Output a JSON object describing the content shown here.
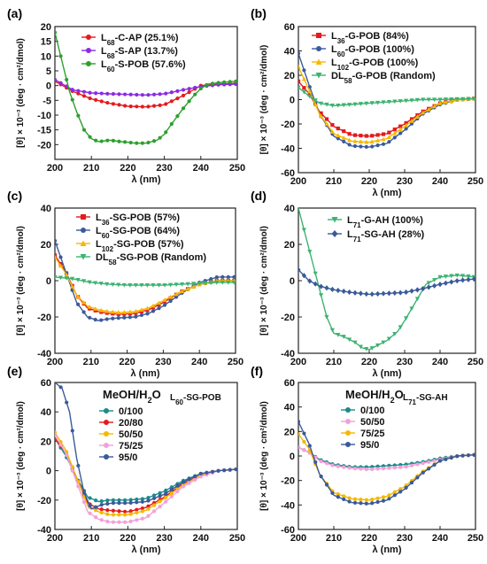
{
  "chart_data": [
    {
      "type": "line",
      "panel_label": "(a)",
      "xlabel": "λ (nm)",
      "ylabel": "[θ] × 10⁻³ (deg · cm²/dmol)",
      "xlim": [
        200,
        250
      ],
      "ylim": [
        -25,
        20
      ],
      "xticks": [
        200,
        210,
        220,
        230,
        240,
        250
      ],
      "yticks": [
        -20,
        -15,
        -10,
        -5,
        0,
        5,
        10,
        15,
        20
      ],
      "legend_placement": "top-right",
      "series": [
        {
          "name": "L68-C-AP (25.1%)",
          "color": "#e41a1c",
          "marker": "circle",
          "x": [
            200,
            205,
            210,
            215,
            220,
            225,
            230,
            235,
            240,
            245,
            250
          ],
          "y": [
            1.5,
            -2,
            -4.5,
            -6,
            -7,
            -7.2,
            -6.5,
            -3.5,
            0,
            0.5,
            0.8
          ]
        },
        {
          "name": "L68-S-AP (13.7%)",
          "color": "#8a2be2",
          "marker": "circle",
          "x": [
            200,
            205,
            210,
            215,
            220,
            225,
            230,
            235,
            240,
            245,
            250
          ],
          "y": [
            2,
            -1.5,
            -2.5,
            -2.8,
            -3,
            -3.2,
            -2.8,
            -1.5,
            -0.3,
            0.3,
            0.5
          ]
        },
        {
          "name": "L60-S-POB (57.6%)",
          "color": "#2ca02c",
          "marker": "circle",
          "x": [
            200,
            202,
            204,
            206,
            208,
            210,
            212,
            215,
            218,
            220,
            222,
            225,
            228,
            230,
            232,
            235,
            238,
            240,
            242,
            245,
            250
          ],
          "y": [
            18,
            8,
            -2,
            -9,
            -15,
            -18,
            -19,
            -18.5,
            -19,
            -19.2,
            -19.5,
            -19.5,
            -18.5,
            -16.5,
            -13,
            -8,
            -3.5,
            -1,
            0.5,
            1,
            1.5
          ]
        }
      ]
    },
    {
      "type": "line",
      "panel_label": "(b)",
      "xlabel": "λ (nm)",
      "ylabel": "[θ] × 10⁻³ (deg · cm²/dmol)",
      "xlim": [
        200,
        250
      ],
      "ylim": [
        -60,
        60
      ],
      "xticks": [
        200,
        210,
        220,
        230,
        240,
        250
      ],
      "yticks": [
        -60,
        -40,
        -20,
        0,
        20,
        40,
        60
      ],
      "legend_placement": "top-right",
      "series": [
        {
          "name": "L36-G-POB (84%)",
          "color": "#e41a1c",
          "marker": "square",
          "x": [
            200,
            203,
            206,
            210,
            215,
            220,
            225,
            230,
            235,
            240,
            245,
            250
          ],
          "y": [
            15,
            5,
            -10,
            -22,
            -29,
            -30,
            -28,
            -20,
            -10,
            -3,
            0,
            1
          ]
        },
        {
          "name": "L60-G-POB (100%)",
          "color": "#3a5a9a",
          "marker": "circle",
          "x": [
            200,
            203,
            206,
            210,
            215,
            220,
            225,
            230,
            235,
            240,
            245,
            250
          ],
          "y": [
            38,
            12,
            -12,
            -30,
            -38,
            -39,
            -36,
            -25,
            -12,
            -4,
            0,
            1
          ]
        },
        {
          "name": "L102-G-POB (100%)",
          "color": "#f5b800",
          "marker": "triangle-up",
          "x": [
            200,
            203,
            206,
            210,
            215,
            220,
            225,
            230,
            235,
            240,
            245,
            250
          ],
          "y": [
            27,
            8,
            -12,
            -28,
            -34,
            -35,
            -32,
            -22,
            -11,
            -3,
            0,
            1
          ]
        },
        {
          "name": "DL58-G-POB (Random)",
          "color": "#3cb371",
          "marker": "triangle-down",
          "x": [
            200,
            203,
            206,
            210,
            215,
            220,
            225,
            230,
            235,
            240,
            245,
            250
          ],
          "y": [
            10,
            3,
            -3,
            -5,
            -4,
            -3,
            -2,
            -1,
            0,
            0,
            0.5,
            0.5
          ]
        }
      ]
    },
    {
      "type": "line",
      "panel_label": "(c)",
      "xlabel": "λ (nm)",
      "ylabel": "[θ] × 10⁻³ (deg · cm²/dmol)",
      "xlim": [
        200,
        250
      ],
      "ylim": [
        -40,
        40
      ],
      "xticks": [
        200,
        210,
        220,
        230,
        240,
        250
      ],
      "yticks": [
        -40,
        -20,
        0,
        20,
        40
      ],
      "legend_placement": "top-right",
      "series": [
        {
          "name": "L36-SG-POB (57%)",
          "color": "#e41a1c",
          "marker": "square",
          "x": [
            200,
            203,
            206,
            209,
            212,
            215,
            218,
            222,
            226,
            230,
            235,
            240,
            245,
            250
          ],
          "y": [
            14,
            5,
            -8,
            -15,
            -17,
            -18,
            -18.5,
            -18,
            -16,
            -12,
            -6,
            -2,
            0,
            0
          ]
        },
        {
          "name": "L60-SG-POB (64%)",
          "color": "#3a5a9a",
          "marker": "circle",
          "x": [
            200,
            203,
            206,
            209,
            212,
            215,
            218,
            222,
            226,
            230,
            235,
            240,
            245,
            250
          ],
          "y": [
            22,
            5,
            -12,
            -20,
            -22,
            -21,
            -20.5,
            -20,
            -18,
            -14,
            -7,
            -1,
            2,
            2
          ]
        },
        {
          "name": "L102-SG-POB (57%)",
          "color": "#f5b800",
          "marker": "triangle-up",
          "x": [
            200,
            203,
            206,
            209,
            212,
            215,
            218,
            222,
            226,
            230,
            235,
            240,
            245,
            250
          ],
          "y": [
            13,
            4,
            -8,
            -14,
            -16,
            -17,
            -17.5,
            -17,
            -15,
            -11,
            -6,
            -2,
            0,
            0
          ]
        },
        {
          "name": "DL58-SG-POB (Random)",
          "color": "#3cb371",
          "marker": "triangle-down",
          "x": [
            200,
            205,
            210,
            215,
            220,
            225,
            230,
            235,
            240,
            245,
            250
          ],
          "y": [
            2,
            1,
            -1,
            -2,
            -2.5,
            -2.5,
            -2.5,
            -2,
            -1.5,
            -1,
            -1
          ]
        }
      ]
    },
    {
      "type": "line",
      "panel_label": "(d)",
      "xlabel": "λ (nm)",
      "ylabel": "[θ] × 10⁻³ (deg · cm²/dmol)",
      "xlim": [
        200,
        250
      ],
      "ylim": [
        -40,
        40
      ],
      "xticks": [
        200,
        210,
        220,
        230,
        240,
        250
      ],
      "yticks": [
        -40,
        -20,
        0,
        20,
        40
      ],
      "legend_placement": "top-right",
      "series": [
        {
          "name": "L71-G-AH (100%)",
          "color": "#3cb371",
          "marker": "triangle-down",
          "x": [
            200,
            202,
            204,
            206,
            208,
            210,
            213,
            216,
            218,
            220,
            222,
            225,
            228,
            230,
            233,
            236,
            240,
            245,
            250
          ],
          "y": [
            40,
            25,
            10,
            -5,
            -20,
            -29,
            -31,
            -34,
            -37,
            -38,
            -36,
            -33,
            -28,
            -22,
            -12,
            -2,
            2,
            3,
            2
          ]
        },
        {
          "name": "L71-SG-AH (28%)",
          "color": "#3a5a9a",
          "marker": "diamond",
          "x": [
            200,
            203,
            206,
            210,
            215,
            220,
            225,
            230,
            235,
            240,
            245,
            250
          ],
          "y": [
            6,
            0,
            -3,
            -5,
            -6.5,
            -7.5,
            -7,
            -6.5,
            -4.5,
            -2,
            0,
            1
          ]
        }
      ]
    },
    {
      "type": "line",
      "panel_label": "(e)",
      "annotation_title": "MeOH/H2O",
      "annotation_sample": "L60-SG-POB",
      "xlabel": "λ (nm)",
      "ylabel": "[θ] × 10⁻³ (deg · cm²/dmol)",
      "xlim": [
        200,
        250
      ],
      "ylim": [
        -40,
        60
      ],
      "xticks": [
        200,
        210,
        220,
        230,
        240,
        250
      ],
      "yticks": [
        -40,
        -20,
        0,
        20,
        40,
        60
      ],
      "legend_placement": "top-left",
      "series": [
        {
          "name": "0/100",
          "color": "#1a8a8a",
          "marker": "circle",
          "x": [
            200,
            203,
            206,
            209,
            212,
            215,
            220,
            225,
            230,
            235,
            240,
            245,
            250
          ],
          "y": [
            22,
            10,
            -5,
            -18,
            -21,
            -20,
            -20,
            -19,
            -14,
            -7,
            -2,
            0,
            1
          ]
        },
        {
          "name": "20/80",
          "color": "#e41a1c",
          "marker": "circle",
          "x": [
            200,
            203,
            206,
            209,
            212,
            215,
            220,
            225,
            230,
            235,
            240,
            245,
            250
          ],
          "y": [
            22,
            12,
            -5,
            -22,
            -26,
            -27,
            -28,
            -25,
            -18,
            -9,
            -3,
            0,
            1
          ]
        },
        {
          "name": "50/50",
          "color": "#f5b800",
          "marker": "circle",
          "x": [
            200,
            203,
            206,
            209,
            212,
            215,
            220,
            225,
            230,
            235,
            240,
            245,
            250
          ],
          "y": [
            26,
            14,
            -5,
            -24,
            -28,
            -30,
            -30,
            -27,
            -19,
            -10,
            -3,
            0,
            1
          ]
        },
        {
          "name": "75/25",
          "color": "#f4a0d8",
          "marker": "circle",
          "x": [
            200,
            203,
            206,
            209,
            212,
            215,
            220,
            225,
            230,
            235,
            240,
            245,
            250
          ],
          "y": [
            24,
            12,
            -8,
            -28,
            -33,
            -35,
            -35,
            -32,
            -22,
            -11,
            -4,
            0,
            1
          ]
        },
        {
          "name": "95/0",
          "color": "#3a5a9a",
          "marker": "circle",
          "x": [
            200,
            202,
            204,
            206,
            208,
            210,
            213,
            216,
            220,
            225,
            230,
            235,
            240,
            245,
            250
          ],
          "y": [
            60,
            56,
            40,
            8,
            -15,
            -26,
            -23,
            -22,
            -22,
            -21,
            -16,
            -8,
            -2,
            0,
            1
          ]
        }
      ]
    },
    {
      "type": "line",
      "panel_label": "(f)",
      "annotation_title": "MeOH/H2O",
      "annotation_sample": "L71-SG-AH",
      "xlabel": "λ (nm)",
      "ylabel": "[θ] × 10⁻³ (deg · cm²/dmol)",
      "xlim": [
        200,
        250
      ],
      "ylim": [
        -60,
        60
      ],
      "xticks": [
        200,
        210,
        220,
        230,
        240,
        250
      ],
      "yticks": [
        -60,
        -40,
        -20,
        0,
        20,
        40,
        60
      ],
      "legend_placement": "top-left",
      "series": [
        {
          "name": "0/100",
          "color": "#1a8a8a",
          "marker": "circle",
          "x": [
            200,
            203,
            206,
            210,
            215,
            220,
            225,
            230,
            235,
            240,
            245,
            250
          ],
          "y": [
            7,
            3,
            -3,
            -7,
            -9,
            -9,
            -8,
            -7,
            -5,
            -2,
            0,
            1
          ]
        },
        {
          "name": "50/50",
          "color": "#f4a0d8",
          "marker": "circle",
          "x": [
            200,
            203,
            206,
            210,
            215,
            220,
            225,
            230,
            235,
            240,
            245,
            250
          ],
          "y": [
            7,
            3,
            -4,
            -8,
            -10,
            -11,
            -10,
            -9,
            -6,
            -3,
            0,
            1
          ]
        },
        {
          "name": "75/25",
          "color": "#f5b800",
          "marker": "circle",
          "x": [
            200,
            203,
            206,
            210,
            215,
            220,
            225,
            230,
            235,
            240,
            245,
            250
          ],
          "y": [
            18,
            6,
            -15,
            -30,
            -35,
            -36,
            -33,
            -25,
            -13,
            -4,
            0,
            1
          ]
        },
        {
          "name": "95/0",
          "color": "#3a5a9a",
          "marker": "circle",
          "x": [
            200,
            203,
            206,
            210,
            215,
            220,
            225,
            230,
            235,
            240,
            245,
            250
          ],
          "y": [
            28,
            10,
            -15,
            -32,
            -38,
            -39,
            -36,
            -27,
            -14,
            -4,
            0,
            1
          ]
        }
      ]
    }
  ]
}
